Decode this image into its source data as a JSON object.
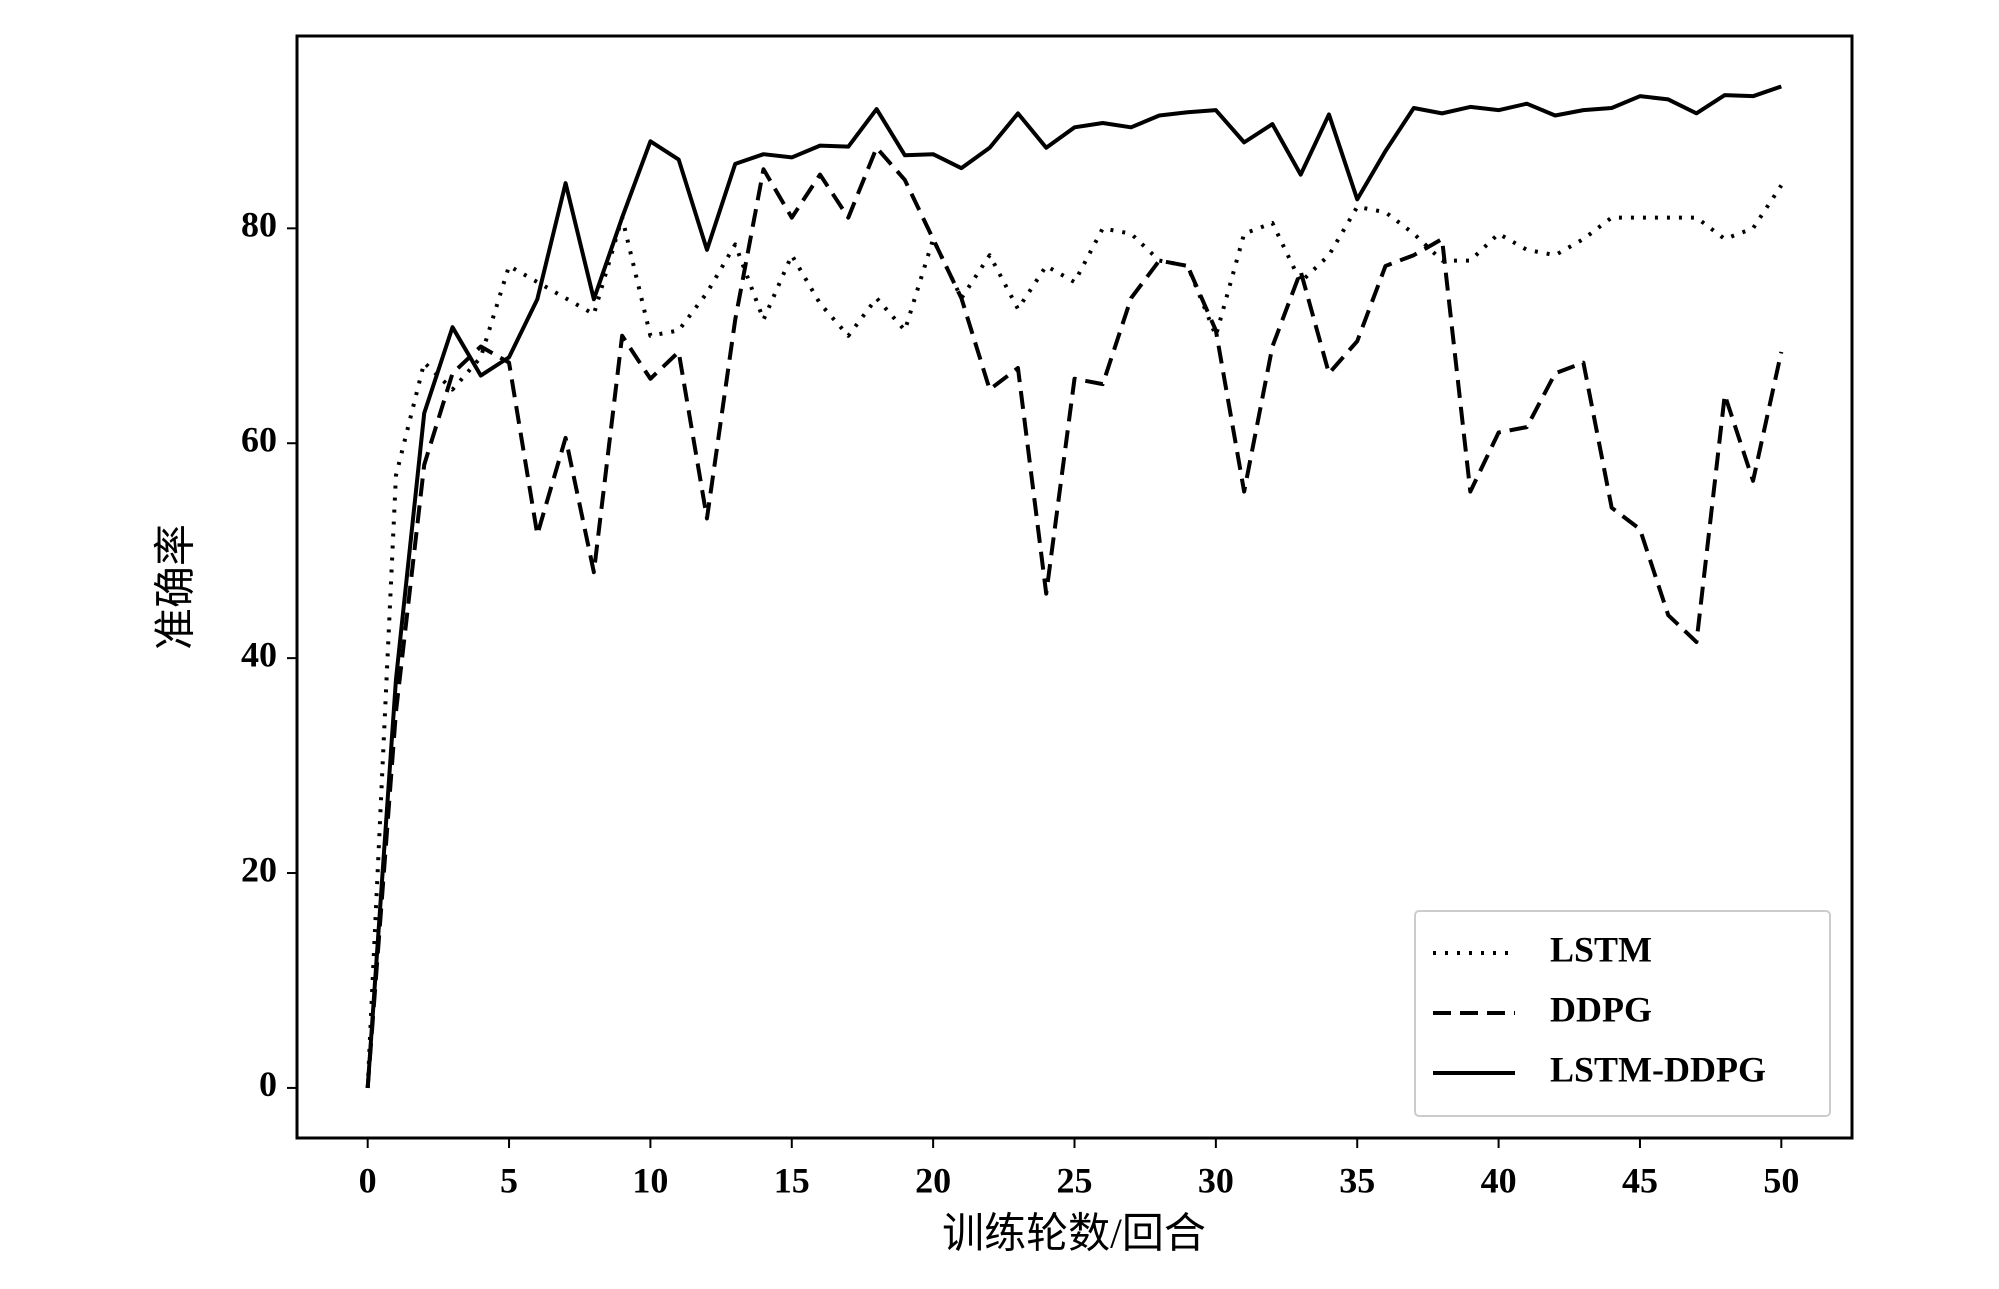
{
  "chart_data": {
    "type": "line",
    "x_label": "训练轮数/回合",
    "y_label": "准确率",
    "x": [
      0,
      1,
      2,
      3,
      4,
      5,
      6,
      7,
      8,
      9,
      10,
      11,
      12,
      13,
      14,
      15,
      16,
      17,
      18,
      19,
      20,
      21,
      22,
      23,
      24,
      25,
      26,
      27,
      28,
      29,
      30,
      31,
      32,
      33,
      34,
      35,
      36,
      37,
      38,
      39,
      40,
      41,
      42,
      43,
      44,
      45,
      46,
      47,
      48,
      49,
      50
    ],
    "series": [
      {
        "name": "LSTM",
        "color": "#000000",
        "linestyle": "dotted",
        "values": [
          0,
          57,
          67.5,
          65,
          68,
          76.5,
          75,
          73.5,
          72,
          81,
          70,
          70.5,
          74,
          78.5,
          71.5,
          77.5,
          73,
          70,
          73.5,
          70.5,
          79,
          73.5,
          77.5,
          72.5,
          76.5,
          75,
          80,
          79.5,
          77,
          76.5,
          70,
          79.5,
          80.5,
          75,
          77.5,
          82,
          81.5,
          79.5,
          77,
          77,
          79.5,
          78,
          77.5,
          79,
          81,
          81,
          81,
          81,
          79,
          80,
          84
        ]
      },
      {
        "name": "DDPG",
        "color": "#000000",
        "linestyle": "dashed",
        "values": [
          0,
          35,
          58,
          66.5,
          69,
          67.5,
          51.5,
          60.5,
          48,
          70,
          66,
          68.5,
          53,
          71.5,
          85.5,
          81,
          85,
          81,
          87.5,
          84.5,
          79,
          73.5,
          65,
          67,
          46,
          66,
          65.5,
          73.5,
          77,
          76.5,
          70.5,
          55.5,
          69,
          76,
          66.5,
          69.5,
          76.5,
          77.5,
          79,
          55.5,
          61,
          61.5,
          66.5,
          67.5,
          54,
          52,
          44,
          41.5,
          64.5,
          56.5,
          68.5
        ]
      },
      {
        "name": "LSTM-DDPG",
        "color": "#000000",
        "linestyle": "solid",
        "values": [
          0,
          38,
          62.8,
          70.8,
          66.3,
          68,
          73.4,
          84.2,
          73.4,
          81,
          88.1,
          86.4,
          78,
          86,
          86.9,
          86.6,
          87.7,
          87.6,
          91.1,
          86.8,
          86.9,
          85.6,
          87.5,
          90.7,
          87.5,
          89.4,
          89.8,
          89.4,
          90.5,
          90.8,
          91,
          88,
          89.7,
          85,
          90.6,
          82.7,
          87.2,
          91.2,
          90.7,
          91.3,
          91,
          91.6,
          90.5,
          91,
          91.2,
          92.3,
          92,
          90.7,
          92.4,
          92.3,
          93.2
        ]
      }
    ],
    "xlim": [
      -2.5,
      52.5
    ],
    "xticks": [
      0,
      5,
      10,
      15,
      20,
      25,
      30,
      35,
      40,
      45,
      50
    ],
    "ylim": [
      -4.66,
      97.9
    ],
    "yticks": [
      0,
      20,
      40,
      60,
      80
    ],
    "grid": false,
    "legend": "lower right"
  }
}
